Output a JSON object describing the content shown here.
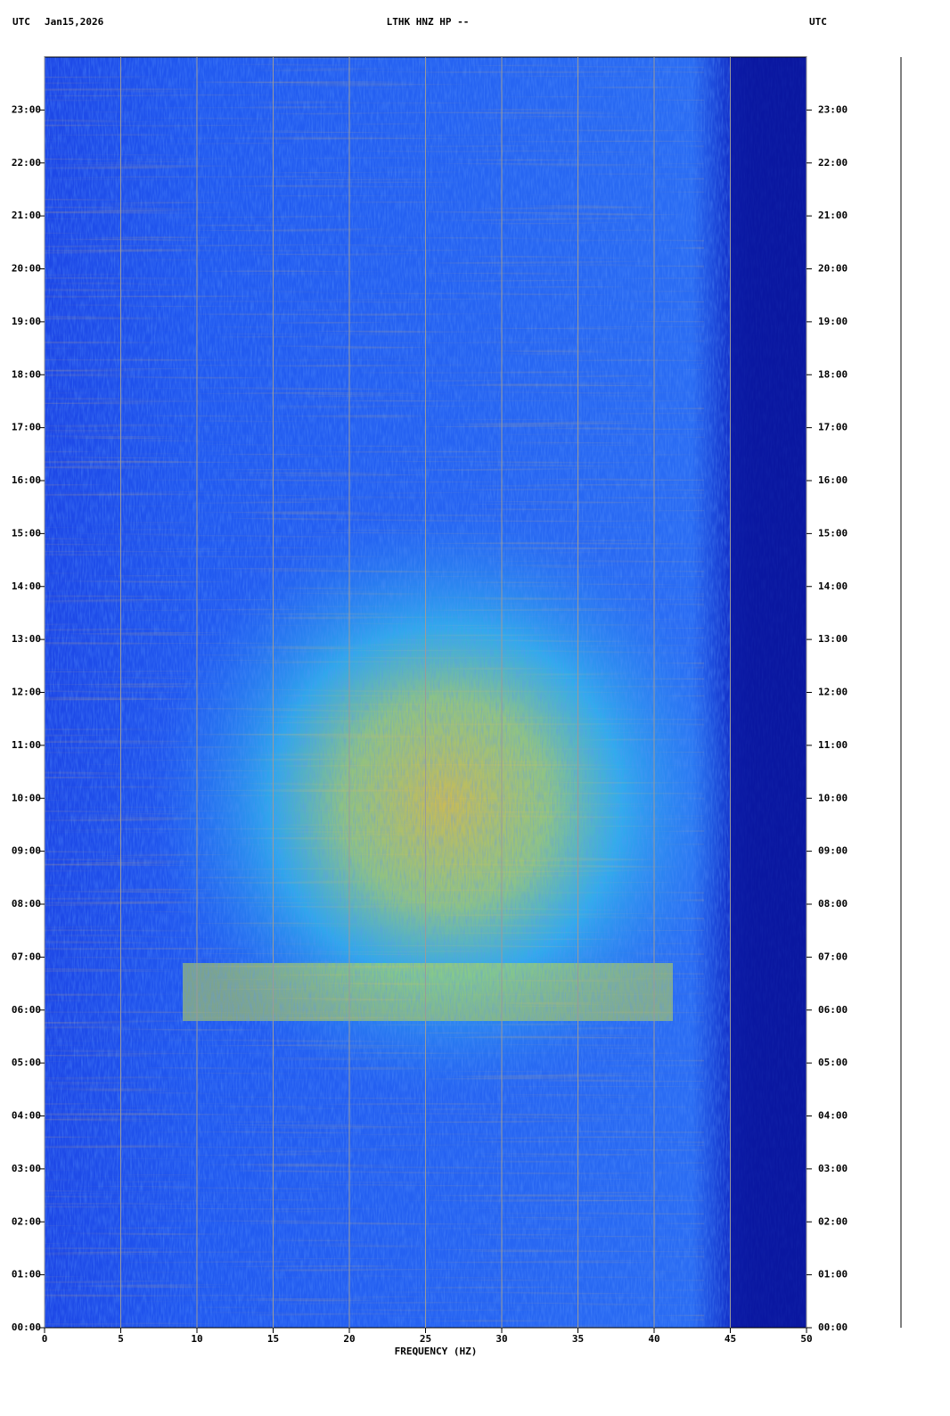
{
  "chart_data": {
    "type": "spectrogram",
    "header_left_zone": "UTC",
    "header_date": "Jan15,2026",
    "title": "LTHK HNZ HP --",
    "header_right_zone": "UTC",
    "x_label": "FREQUENCY (HZ)",
    "xlim": [
      0,
      50
    ],
    "xticks": [
      0,
      5,
      10,
      15,
      20,
      25,
      30,
      35,
      40,
      45,
      50
    ],
    "ylim": [
      0,
      24
    ],
    "yticks": [
      {
        "value": 0,
        "label": "00:00"
      },
      {
        "value": 1,
        "label": "01:00"
      },
      {
        "value": 2,
        "label": "02:00"
      },
      {
        "value": 3,
        "label": "03:00"
      },
      {
        "value": 4,
        "label": "04:00"
      },
      {
        "value": 5,
        "label": "05:00"
      },
      {
        "value": 6,
        "label": "06:00"
      },
      {
        "value": 7,
        "label": "07:00"
      },
      {
        "value": 8,
        "label": "08:00"
      },
      {
        "value": 9,
        "label": "09:00"
      },
      {
        "value": 10,
        "label": "10:00"
      },
      {
        "value": 11,
        "label": "11:00"
      },
      {
        "value": 12,
        "label": "12:00"
      },
      {
        "value": 13,
        "label": "13:00"
      },
      {
        "value": 14,
        "label": "14:00"
      },
      {
        "value": 15,
        "label": "15:00"
      },
      {
        "value": 16,
        "label": "16:00"
      },
      {
        "value": 17,
        "label": "17:00"
      },
      {
        "value": 18,
        "label": "18:00"
      },
      {
        "value": 19,
        "label": "19:00"
      },
      {
        "value": 20,
        "label": "20:00"
      },
      {
        "value": 21,
        "label": "21:00"
      },
      {
        "value": 22,
        "label": "22:00"
      },
      {
        "value": 23,
        "label": "23:00"
      }
    ],
    "grid": true,
    "grid_color": "#9a9a9a"
  }
}
